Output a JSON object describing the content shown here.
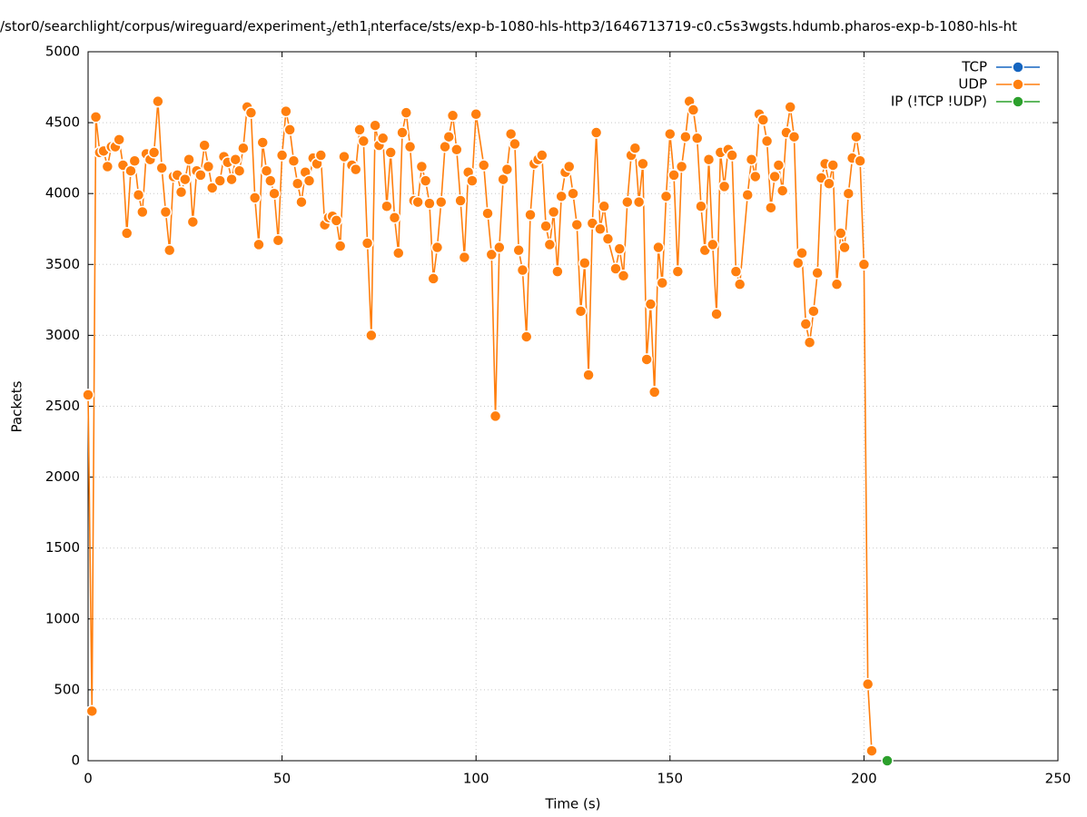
{
  "chart_data": {
    "type": "line",
    "title_parts": [
      "/stor0/searchlight/corpus/wireguard/experiment",
      "3",
      "/eth1",
      "i",
      "nterface/sts/exp-b-1080-hls-http3/1646713719-c0.c5s3wgsts.hdumb.pharos-exp-b-1080-hls-ht"
    ],
    "xlabel": "Time (s)",
    "ylabel": "Packets",
    "xlim": [
      0,
      250
    ],
    "xticks": [
      0,
      50,
      100,
      150,
      200,
      250
    ],
    "ylim": [
      0,
      5000
    ],
    "yticks": [
      0,
      500,
      1000,
      1500,
      2000,
      2500,
      3000,
      3500,
      4000,
      4500,
      5000
    ],
    "grid": true,
    "legend": "top-right",
    "series": [
      {
        "name": "TCP",
        "color": "#1565c0",
        "x": [],
        "values": []
      },
      {
        "name": "UDP",
        "color": "#ff7f0e",
        "x": [
          0,
          1,
          2,
          3,
          4,
          5,
          6,
          7,
          8,
          9,
          10,
          11,
          12,
          13,
          14,
          15,
          16,
          17,
          18,
          19,
          20,
          21,
          22,
          23,
          24,
          25,
          26,
          27,
          28,
          29,
          30,
          31,
          32,
          34,
          35,
          36,
          37,
          38,
          39,
          40,
          41,
          42,
          43,
          44,
          45,
          46,
          47,
          48,
          49,
          50,
          51,
          52,
          53,
          54,
          55,
          56,
          57,
          58,
          59,
          60,
          61,
          62,
          63,
          64,
          65,
          66,
          68,
          69,
          70,
          71,
          72,
          73,
          74,
          75,
          76,
          77,
          78,
          79,
          80,
          81,
          82,
          83,
          84,
          85,
          86,
          87,
          88,
          89,
          90,
          91,
          92,
          93,
          94,
          95,
          96,
          97,
          98,
          99,
          100,
          102,
          103,
          104,
          105,
          106,
          107,
          108,
          109,
          110,
          111,
          112,
          113,
          114,
          115,
          116,
          117,
          118,
          119,
          120,
          121,
          122,
          123,
          124,
          125,
          126,
          127,
          128,
          129,
          130,
          131,
          132,
          133,
          134,
          136,
          137,
          138,
          139,
          140,
          141,
          142,
          143,
          144,
          145,
          146,
          147,
          148,
          149,
          150,
          151,
          152,
          153,
          154,
          155,
          156,
          157,
          158,
          159,
          160,
          161,
          162,
          163,
          164,
          165,
          166,
          167,
          168,
          170,
          171,
          172,
          173,
          174,
          175,
          176,
          177,
          178,
          179,
          180,
          181,
          182,
          183,
          184,
          185,
          186,
          187,
          188,
          189,
          190,
          191,
          192,
          193,
          194,
          195,
          196,
          197,
          198,
          199,
          200,
          201,
          202
        ],
        "values": [
          2580,
          350,
          4540,
          4290,
          4300,
          4190,
          4330,
          4330,
          4380,
          4200,
          3720,
          4160,
          4230,
          3990,
          3870,
          4280,
          4240,
          4290,
          4650,
          4180,
          3870,
          3600,
          4120,
          4130,
          4010,
          4100,
          4240,
          3800,
          4160,
          4130,
          4340,
          4190,
          4040,
          4090,
          4260,
          4220,
          4100,
          4240,
          4160,
          4320,
          4610,
          4570,
          3970,
          3640,
          4360,
          4160,
          4090,
          4000,
          3670,
          4270,
          4580,
          4450,
          4230,
          4070,
          3940,
          4150,
          4090,
          4250,
          4210,
          4270,
          3780,
          3830,
          3840,
          3810,
          3630,
          4260,
          4200,
          4170,
          4450,
          4370,
          3650,
          3000,
          4480,
          4340,
          4390,
          3910,
          4290,
          3830,
          3580,
          4430,
          4570,
          4330,
          3950,
          3940,
          4190,
          4090,
          3930,
          3400,
          3620,
          3940,
          4330,
          4400,
          4550,
          4310,
          3950,
          3550,
          4150,
          4090,
          4560,
          4200,
          3860,
          3570,
          2430,
          3620,
          4100,
          4170,
          4420,
          4350,
          3600,
          3460,
          2990,
          3850,
          4210,
          4240,
          4270,
          3770,
          3640,
          3870,
          3450,
          3980,
          4150,
          4190,
          4000,
          3780,
          3170,
          3510,
          2720,
          3790,
          4430,
          3750,
          3910,
          3680,
          3470,
          3610,
          3420,
          3940,
          4270,
          4320,
          3940,
          4210,
          2830,
          3220,
          2600,
          3620,
          3370,
          3980,
          4420,
          4130,
          3450,
          4190,
          4400,
          4650,
          4590,
          4390,
          3910,
          3600,
          4240,
          3640,
          3150,
          4290,
          4050,
          4310,
          4270,
          3450,
          3360,
          3990,
          4240,
          4120,
          4560,
          4520,
          4370,
          3900,
          4120,
          4200,
          4020,
          4430,
          4610,
          4400,
          3510,
          3580,
          3080,
          2950,
          3170,
          3440,
          4110,
          4210,
          4070,
          4200,
          3360,
          3720,
          3620,
          4000,
          4250,
          4400,
          4230,
          3500,
          540,
          70
        ]
      },
      {
        "name": "IP (!TCP  !UDP)",
        "color": "#2ca02c",
        "x": [
          206
        ],
        "values": [
          0
        ]
      }
    ]
  }
}
